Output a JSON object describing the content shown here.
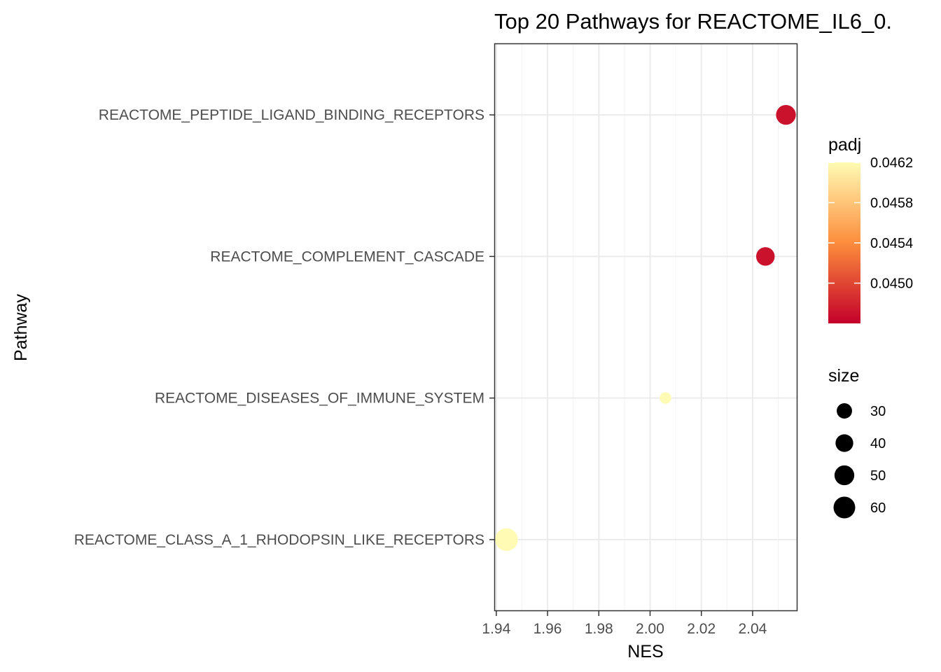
{
  "chart_data": {
    "type": "scatter",
    "title": "Top 20 Pathways for  REACTOME_IL6_0.",
    "xlabel": "NES",
    "ylabel": "Pathway",
    "xlim": [
      1.9395,
      2.0575
    ],
    "xticks": [
      1.94,
      1.96,
      1.98,
      2.0,
      2.02,
      2.04
    ],
    "xtick_labels": [
      "1.94",
      "1.96",
      "1.98",
      "2.00",
      "2.02",
      "2.04"
    ],
    "categories": [
      "REACTOME_PEPTIDE_LIGAND_BINDING_RECEPTORS",
      "REACTOME_COMPLEMENT_CASCADE",
      "REACTOME_DISEASES_OF_IMMUNE_SYSTEM",
      "REACTOME_CLASS_A_1_RHODOPSIN_LIKE_RECEPTORS"
    ],
    "points": [
      {
        "pathway": "REACTOME_PEPTIDE_LIGAND_BINDING_RECEPTORS",
        "NES": 2.053,
        "padj": 0.0447,
        "size": 50
      },
      {
        "pathway": "REACTOME_COMPLEMENT_CASCADE",
        "NES": 2.045,
        "padj": 0.0447,
        "size": 44
      },
      {
        "pathway": "REACTOME_DISEASES_OF_IMMUNE_SYSTEM",
        "NES": 2.006,
        "padj": 0.0462,
        "size": 17
      },
      {
        "pathway": "REACTOME_CLASS_A_1_RHODOPSIN_LIKE_RECEPTORS",
        "NES": 1.944,
        "padj": 0.0462,
        "size": 66
      }
    ],
    "grid": true,
    "legend": {
      "placement": "right",
      "color": {
        "title": "padj",
        "range": [
          0.0446,
          0.0462
        ],
        "ticks": [
          0.0462,
          0.0458,
          0.0454,
          0.045
        ],
        "tick_labels": [
          "0.0462",
          "0.0458",
          "0.0454",
          "0.0450"
        ],
        "low_color": "#c4002b",
        "mid_color": "#fc8d3c",
        "high_color": "#fffbb4"
      },
      "size": {
        "title": "size",
        "values": [
          30,
          40,
          50,
          60
        ],
        "labels": [
          "30",
          "40",
          "50",
          "60"
        ]
      }
    }
  }
}
